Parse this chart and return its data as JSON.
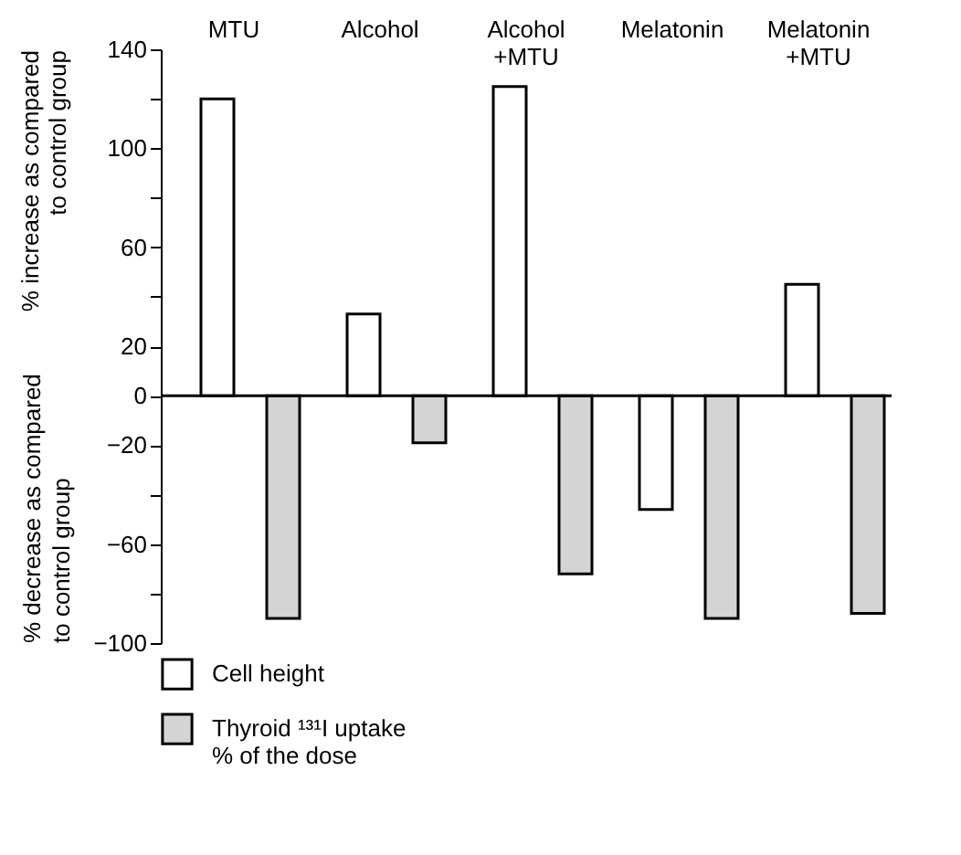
{
  "chart_data": {
    "type": "bar",
    "categories": [
      "MTU",
      "Alcohol",
      "Alcohol\n+MTU",
      "Melatonin",
      "Melatonin\n+MTU"
    ],
    "ylabel": "% increase as compared\nto control group",
    "annotations": [
      "% decrease as compared\nto control group"
    ],
    "series": [
      {
        "name": "Cell height",
        "color": "#ffffff",
        "values": [
          120,
          33,
          125,
          -46,
          45
        ]
      },
      {
        "name": "Thyroid ¹³¹I uptake\n% of the dose",
        "color": "#d4d4d4",
        "values": [
          -90,
          -19,
          -72,
          -90,
          -88
        ]
      }
    ],
    "ylim": [
      -100,
      140
    ],
    "yticks": [
      -100,
      {
        "value": -80,
        "label": null
      },
      -60,
      {
        "value": -40,
        "label": null
      },
      -20,
      0,
      20,
      {
        "value": 40,
        "label": null
      },
      60,
      {
        "value": 80,
        "label": null
      },
      100,
      {
        "value": 120,
        "label": null
      },
      140
    ],
    "legend": "bottom left"
  }
}
